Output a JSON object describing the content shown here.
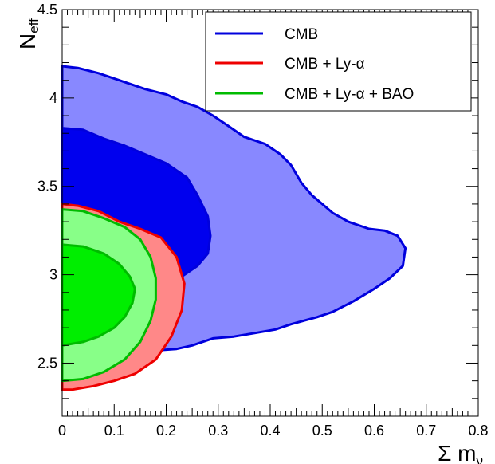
{
  "chart_data": {
    "type": "contour",
    "title": "",
    "xlabel": "Σ m",
    "xlabel_sub": "ν",
    "ylabel": "N",
    "ylabel_sub": "eff",
    "xlim": [
      0,
      0.8
    ],
    "ylim": [
      2.2,
      4.5
    ],
    "x_ticks": [
      "0",
      "0.1",
      "0.2",
      "0.3",
      "0.4",
      "0.5",
      "0.6",
      "0.7",
      "0.8"
    ],
    "x_tick_values": [
      0,
      0.1,
      0.2,
      0.3,
      0.4,
      0.5,
      0.6,
      0.7,
      0.8
    ],
    "y_ticks": [
      "2.5",
      "3",
      "3.5",
      "4",
      "4.5"
    ],
    "y_tick_values": [
      2.5,
      3.0,
      3.5,
      4.0,
      4.5
    ],
    "grid": false,
    "legend_position": "top-right",
    "series": [
      {
        "name": "CMB",
        "line_color": "#0000dd",
        "fill_outer": "#8888ff",
        "fill_inner": "#0000ee",
        "outer_contour": [
          [
            0,
            4.18
          ],
          [
            0.03,
            4.17
          ],
          [
            0.07,
            4.14
          ],
          [
            0.11,
            4.1
          ],
          [
            0.16,
            4.05
          ],
          [
            0.2,
            4.02
          ],
          [
            0.23,
            3.98
          ],
          [
            0.26,
            3.95
          ],
          [
            0.29,
            3.9
          ],
          [
            0.32,
            3.84
          ],
          [
            0.35,
            3.78
          ],
          [
            0.39,
            3.74
          ],
          [
            0.42,
            3.68
          ],
          [
            0.44,
            3.62
          ],
          [
            0.46,
            3.52
          ],
          [
            0.48,
            3.45
          ],
          [
            0.5,
            3.4
          ],
          [
            0.52,
            3.35
          ],
          [
            0.55,
            3.3
          ],
          [
            0.59,
            3.26
          ],
          [
            0.62,
            3.25
          ],
          [
            0.645,
            3.22
          ],
          [
            0.66,
            3.15
          ],
          [
            0.655,
            3.05
          ],
          [
            0.63,
            2.98
          ],
          [
            0.6,
            2.92
          ],
          [
            0.56,
            2.85
          ],
          [
            0.52,
            2.79
          ],
          [
            0.49,
            2.76
          ],
          [
            0.44,
            2.72
          ],
          [
            0.41,
            2.69
          ],
          [
            0.37,
            2.67
          ],
          [
            0.33,
            2.65
          ],
          [
            0.29,
            2.64
          ],
          [
            0.25,
            2.6
          ],
          [
            0.22,
            2.58
          ],
          [
            0.17,
            2.57
          ],
          [
            0.12,
            2.58
          ],
          [
            0.08,
            2.59
          ],
          [
            0.05,
            2.62
          ],
          [
            0.03,
            2.68
          ],
          [
            0,
            2.7
          ]
        ],
        "inner_contour": [
          [
            0,
            3.83
          ],
          [
            0.04,
            3.82
          ],
          [
            0.08,
            3.77
          ],
          [
            0.12,
            3.73
          ],
          [
            0.16,
            3.68
          ],
          [
            0.2,
            3.63
          ],
          [
            0.24,
            3.55
          ],
          [
            0.26,
            3.45
          ],
          [
            0.28,
            3.33
          ],
          [
            0.285,
            3.22
          ],
          [
            0.28,
            3.12
          ],
          [
            0.26,
            3.05
          ],
          [
            0.22,
            2.97
          ],
          [
            0.19,
            2.93
          ],
          [
            0.15,
            2.93
          ],
          [
            0.1,
            2.95
          ],
          [
            0.05,
            2.98
          ],
          [
            0,
            3.0
          ]
        ]
      },
      {
        "name": "CMB + Ly-α",
        "line_color": "#ee0000",
        "fill_outer": "#ff8888",
        "fill_inner": "#ee0000",
        "outer_contour": [
          [
            0,
            3.4
          ],
          [
            0.03,
            3.39
          ],
          [
            0.07,
            3.36
          ],
          [
            0.11,
            3.3
          ],
          [
            0.15,
            3.26
          ],
          [
            0.19,
            3.21
          ],
          [
            0.22,
            3.1
          ],
          [
            0.235,
            2.95
          ],
          [
            0.23,
            2.8
          ],
          [
            0.21,
            2.65
          ],
          [
            0.18,
            2.52
          ],
          [
            0.14,
            2.44
          ],
          [
            0.1,
            2.4
          ],
          [
            0.06,
            2.37
          ],
          [
            0.02,
            2.35
          ],
          [
            0,
            2.35
          ]
        ]
      },
      {
        "name": "CMB + Ly-α + BAO",
        "line_color": "#00bb00",
        "fill_outer": "#88ff88",
        "fill_inner": "#00ee00",
        "outer_contour": [
          [
            0,
            3.37
          ],
          [
            0.04,
            3.36
          ],
          [
            0.08,
            3.32
          ],
          [
            0.12,
            3.27
          ],
          [
            0.15,
            3.2
          ],
          [
            0.17,
            3.1
          ],
          [
            0.18,
            2.98
          ],
          [
            0.18,
            2.86
          ],
          [
            0.17,
            2.74
          ],
          [
            0.15,
            2.62
          ],
          [
            0.12,
            2.52
          ],
          [
            0.08,
            2.45
          ],
          [
            0.04,
            2.41
          ],
          [
            0,
            2.4
          ]
        ],
        "inner_contour": [
          [
            0,
            3.17
          ],
          [
            0.04,
            3.16
          ],
          [
            0.08,
            3.12
          ],
          [
            0.11,
            3.06
          ],
          [
            0.13,
            2.99
          ],
          [
            0.14,
            2.92
          ],
          [
            0.135,
            2.84
          ],
          [
            0.12,
            2.76
          ],
          [
            0.1,
            2.7
          ],
          [
            0.07,
            2.65
          ],
          [
            0.04,
            2.62
          ],
          [
            0,
            2.6
          ]
        ]
      }
    ]
  }
}
